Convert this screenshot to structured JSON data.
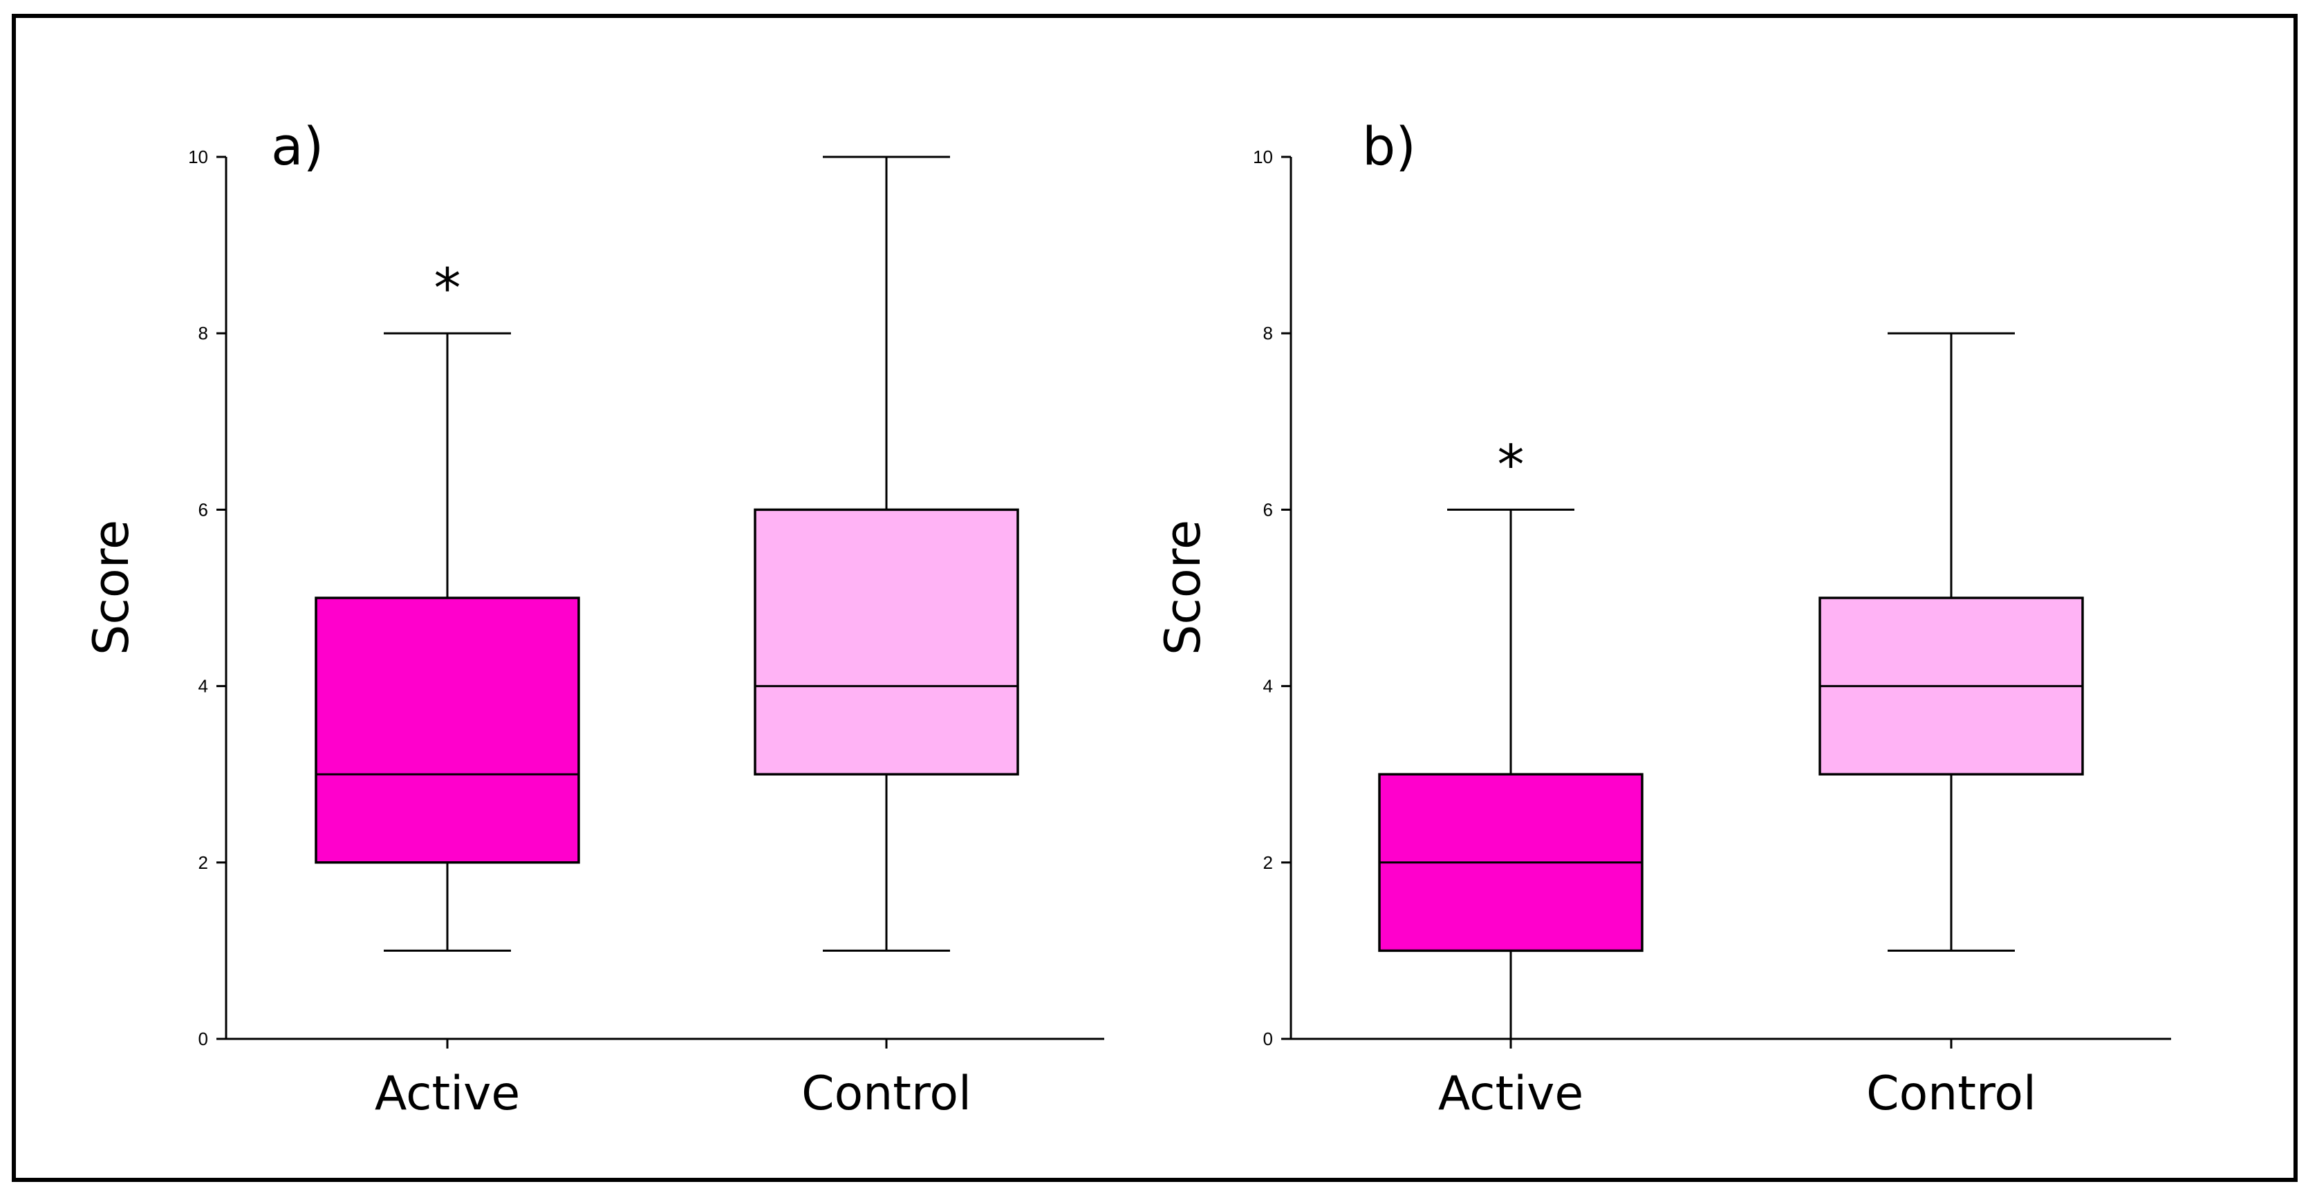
{
  "chart_data": [
    {
      "type": "box",
      "panel_label": "a)",
      "ylabel": "Score",
      "ylim": [
        0,
        10
      ],
      "yticks": [
        "0",
        "2",
        "4",
        "6",
        "8",
        "10"
      ],
      "categories": [
        "Active",
        "Control"
      ],
      "boxes": [
        {
          "category": "Active",
          "min": 1,
          "q1": 2,
          "median": 3,
          "q3": 5,
          "max": 8,
          "color": "#ff00cc",
          "annotation": "*"
        },
        {
          "category": "Control",
          "min": 1,
          "q1": 3,
          "median": 4,
          "q3": 6,
          "max": 10,
          "color": "#ffb3f5",
          "annotation": ""
        }
      ]
    },
    {
      "type": "box",
      "panel_label": "b)",
      "ylabel": "Score",
      "ylim": [
        0,
        10
      ],
      "yticks": [
        "0",
        "2",
        "4",
        "6",
        "8",
        "10"
      ],
      "categories": [
        "Active",
        "Control"
      ],
      "boxes": [
        {
          "category": "Active",
          "min": 0,
          "q1": 1,
          "median": 2,
          "q3": 3,
          "max": 6,
          "color": "#ff00cc",
          "annotation": "*"
        },
        {
          "category": "Control",
          "min": 1,
          "q1": 3,
          "median": 4,
          "q3": 5,
          "max": 8,
          "color": "#ffb3f5",
          "annotation": ""
        }
      ]
    }
  ]
}
